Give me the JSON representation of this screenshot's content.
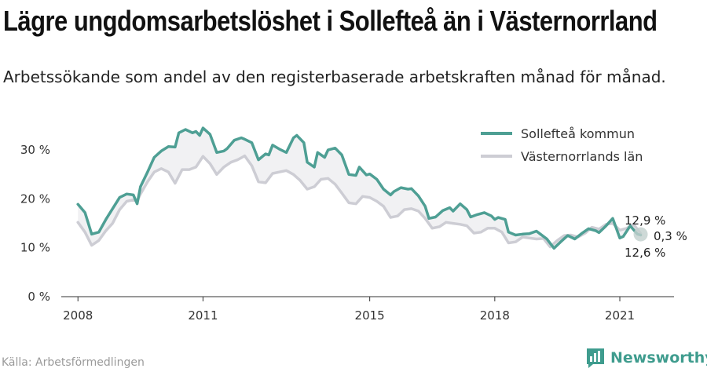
{
  "title": "Lägre ungdomsarbetslöshet i Sollefteå än i Västernorrland",
  "subtitle": "Arbetssökande som andel av den registerbaserade arbetskraften månad för månad.",
  "source": "Källa: Arbetsförmedlingen",
  "brand": "Newsworthy",
  "colors": {
    "series1": "#4e9f94",
    "series2": "#cdcdd4",
    "fill": "#f1f1f3",
    "brand": "#3f9c8e"
  },
  "icons": {
    "brand": "bar-chart-logo-icon"
  },
  "chart_data": {
    "type": "line",
    "x_unit": "year",
    "xlim": [
      2007.6,
      2022.3
    ],
    "ylim": [
      0,
      35
    ],
    "yticks": [
      0,
      10,
      20,
      30
    ],
    "ytick_labels": [
      "0 %",
      "10 %",
      "20 %",
      "30 %"
    ],
    "xticks": [
      2008,
      2011,
      2015,
      2018,
      2021
    ],
    "xtick_labels": [
      "2008",
      "2011",
      "2015",
      "2018",
      "2021"
    ],
    "grid": false,
    "legend": "top-right",
    "series": [
      {
        "name": "Sollefteå kommun",
        "points": [
          [
            2008.0,
            18.9
          ],
          [
            2008.17,
            17.2
          ],
          [
            2008.33,
            12.8
          ],
          [
            2008.5,
            13.2
          ],
          [
            2008.67,
            15.8
          ],
          [
            2008.83,
            18.0
          ],
          [
            2009.0,
            20.3
          ],
          [
            2009.17,
            21.0
          ],
          [
            2009.33,
            20.8
          ],
          [
            2009.42,
            19.0
          ],
          [
            2009.5,
            22.5
          ],
          [
            2009.67,
            25.5
          ],
          [
            2009.83,
            28.5
          ],
          [
            2010.0,
            29.8
          ],
          [
            2010.17,
            30.7
          ],
          [
            2010.33,
            30.6
          ],
          [
            2010.42,
            33.5
          ],
          [
            2010.58,
            34.2
          ],
          [
            2010.75,
            33.5
          ],
          [
            2010.83,
            33.8
          ],
          [
            2010.92,
            33.0
          ],
          [
            2011.0,
            34.5
          ],
          [
            2011.17,
            33.2
          ],
          [
            2011.33,
            29.5
          ],
          [
            2011.5,
            29.8
          ],
          [
            2011.58,
            30.3
          ],
          [
            2011.75,
            32.0
          ],
          [
            2011.92,
            32.5
          ],
          [
            2012.0,
            32.2
          ],
          [
            2012.17,
            31.5
          ],
          [
            2012.33,
            28.0
          ],
          [
            2012.5,
            29.2
          ],
          [
            2012.58,
            29.0
          ],
          [
            2012.67,
            31.0
          ],
          [
            2012.83,
            30.2
          ],
          [
            2013.0,
            29.5
          ],
          [
            2013.17,
            32.5
          ],
          [
            2013.25,
            33.0
          ],
          [
            2013.42,
            31.5
          ],
          [
            2013.5,
            27.5
          ],
          [
            2013.67,
            26.5
          ],
          [
            2013.75,
            29.5
          ],
          [
            2013.92,
            28.5
          ],
          [
            2014.0,
            30.0
          ],
          [
            2014.17,
            30.4
          ],
          [
            2014.33,
            29.0
          ],
          [
            2014.5,
            25.0
          ],
          [
            2014.67,
            24.8
          ],
          [
            2014.75,
            26.5
          ],
          [
            2014.92,
            24.9
          ],
          [
            2015.0,
            25.1
          ],
          [
            2015.17,
            24.0
          ],
          [
            2015.33,
            22.0
          ],
          [
            2015.5,
            20.8
          ],
          [
            2015.58,
            21.5
          ],
          [
            2015.75,
            22.3
          ],
          [
            2015.92,
            22.0
          ],
          [
            2016.0,
            22.1
          ],
          [
            2016.17,
            20.6
          ],
          [
            2016.33,
            18.5
          ],
          [
            2016.42,
            16.0
          ],
          [
            2016.58,
            16.3
          ],
          [
            2016.75,
            17.6
          ],
          [
            2016.92,
            18.2
          ],
          [
            2017.0,
            17.5
          ],
          [
            2017.17,
            19.0
          ],
          [
            2017.33,
            17.8
          ],
          [
            2017.42,
            16.3
          ],
          [
            2017.58,
            16.8
          ],
          [
            2017.75,
            17.2
          ],
          [
            2017.92,
            16.5
          ],
          [
            2018.0,
            15.8
          ],
          [
            2018.08,
            16.2
          ],
          [
            2018.25,
            15.8
          ],
          [
            2018.33,
            13.2
          ],
          [
            2018.5,
            12.6
          ],
          [
            2018.67,
            12.8
          ],
          [
            2018.83,
            12.9
          ],
          [
            2019.0,
            13.4
          ],
          [
            2019.08,
            12.9
          ],
          [
            2019.25,
            11.8
          ],
          [
            2019.42,
            9.9
          ],
          [
            2019.58,
            11.2
          ],
          [
            2019.75,
            12.5
          ],
          [
            2019.92,
            11.8
          ],
          [
            2020.08,
            12.9
          ],
          [
            2020.25,
            13.9
          ],
          [
            2020.42,
            13.5
          ],
          [
            2020.5,
            13.1
          ],
          [
            2020.67,
            14.5
          ],
          [
            2020.83,
            16.0
          ],
          [
            2021.0,
            12.0
          ],
          [
            2021.08,
            12.3
          ],
          [
            2021.25,
            14.5
          ],
          [
            2021.42,
            12.8
          ],
          [
            2021.5,
            12.6
          ]
        ]
      },
      {
        "name": "Västernorrlands län",
        "points": [
          [
            2008.0,
            15.2
          ],
          [
            2008.17,
            13.2
          ],
          [
            2008.33,
            10.5
          ],
          [
            2008.5,
            11.5
          ],
          [
            2008.67,
            13.5
          ],
          [
            2008.83,
            15.0
          ],
          [
            2009.0,
            17.8
          ],
          [
            2009.17,
            19.5
          ],
          [
            2009.33,
            19.8
          ],
          [
            2009.42,
            19.5
          ],
          [
            2009.5,
            21.0
          ],
          [
            2009.67,
            23.5
          ],
          [
            2009.83,
            25.5
          ],
          [
            2010.0,
            26.2
          ],
          [
            2010.17,
            25.5
          ],
          [
            2010.33,
            23.2
          ],
          [
            2010.5,
            26.0
          ],
          [
            2010.67,
            26.0
          ],
          [
            2010.83,
            26.5
          ],
          [
            2011.0,
            28.7
          ],
          [
            2011.17,
            27.2
          ],
          [
            2011.33,
            25.0
          ],
          [
            2011.5,
            26.5
          ],
          [
            2011.67,
            27.5
          ],
          [
            2011.83,
            28.0
          ],
          [
            2012.0,
            28.8
          ],
          [
            2012.17,
            26.8
          ],
          [
            2012.33,
            23.5
          ],
          [
            2012.5,
            23.3
          ],
          [
            2012.67,
            25.2
          ],
          [
            2012.83,
            25.5
          ],
          [
            2013.0,
            25.8
          ],
          [
            2013.17,
            25.0
          ],
          [
            2013.33,
            23.8
          ],
          [
            2013.5,
            22.0
          ],
          [
            2013.67,
            22.5
          ],
          [
            2013.83,
            24.0
          ],
          [
            2014.0,
            24.2
          ],
          [
            2014.17,
            23.0
          ],
          [
            2014.33,
            21.2
          ],
          [
            2014.5,
            19.2
          ],
          [
            2014.67,
            19.0
          ],
          [
            2014.83,
            20.5
          ],
          [
            2015.0,
            20.3
          ],
          [
            2015.17,
            19.5
          ],
          [
            2015.33,
            18.5
          ],
          [
            2015.5,
            16.2
          ],
          [
            2015.67,
            16.5
          ],
          [
            2015.83,
            17.8
          ],
          [
            2016.0,
            18.0
          ],
          [
            2016.17,
            17.5
          ],
          [
            2016.33,
            16.0
          ],
          [
            2016.5,
            14.0
          ],
          [
            2016.67,
            14.3
          ],
          [
            2016.83,
            15.2
          ],
          [
            2017.0,
            15.0
          ],
          [
            2017.17,
            14.8
          ],
          [
            2017.33,
            14.5
          ],
          [
            2017.5,
            13.0
          ],
          [
            2017.67,
            13.2
          ],
          [
            2017.83,
            14.0
          ],
          [
            2018.0,
            14.0
          ],
          [
            2018.17,
            13.2
          ],
          [
            2018.33,
            11.0
          ],
          [
            2018.5,
            11.2
          ],
          [
            2018.67,
            12.2
          ],
          [
            2018.83,
            12.0
          ],
          [
            2019.0,
            11.8
          ],
          [
            2019.17,
            11.9
          ],
          [
            2019.33,
            10.2
          ],
          [
            2019.5,
            11.5
          ],
          [
            2019.67,
            12.5
          ],
          [
            2019.83,
            12.6
          ],
          [
            2020.0,
            12.2
          ],
          [
            2020.17,
            13.0
          ],
          [
            2020.33,
            14.2
          ],
          [
            2020.5,
            13.8
          ],
          [
            2020.67,
            14.8
          ],
          [
            2020.83,
            15.0
          ],
          [
            2021.0,
            13.6
          ],
          [
            2021.17,
            14.0
          ],
          [
            2021.33,
            14.8
          ],
          [
            2021.5,
            12.9
          ]
        ]
      }
    ],
    "annotations": [
      {
        "text": "12,9 %",
        "series": "Västernorrlands län",
        "x": 2021.5,
        "y": 12.9
      },
      {
        "text": "12,6 %",
        "series": "Sollefteå kommun",
        "x": 2021.5,
        "y": 12.6
      },
      {
        "text": "0,3 %",
        "type": "difference",
        "x": 2021.5
      }
    ]
  }
}
